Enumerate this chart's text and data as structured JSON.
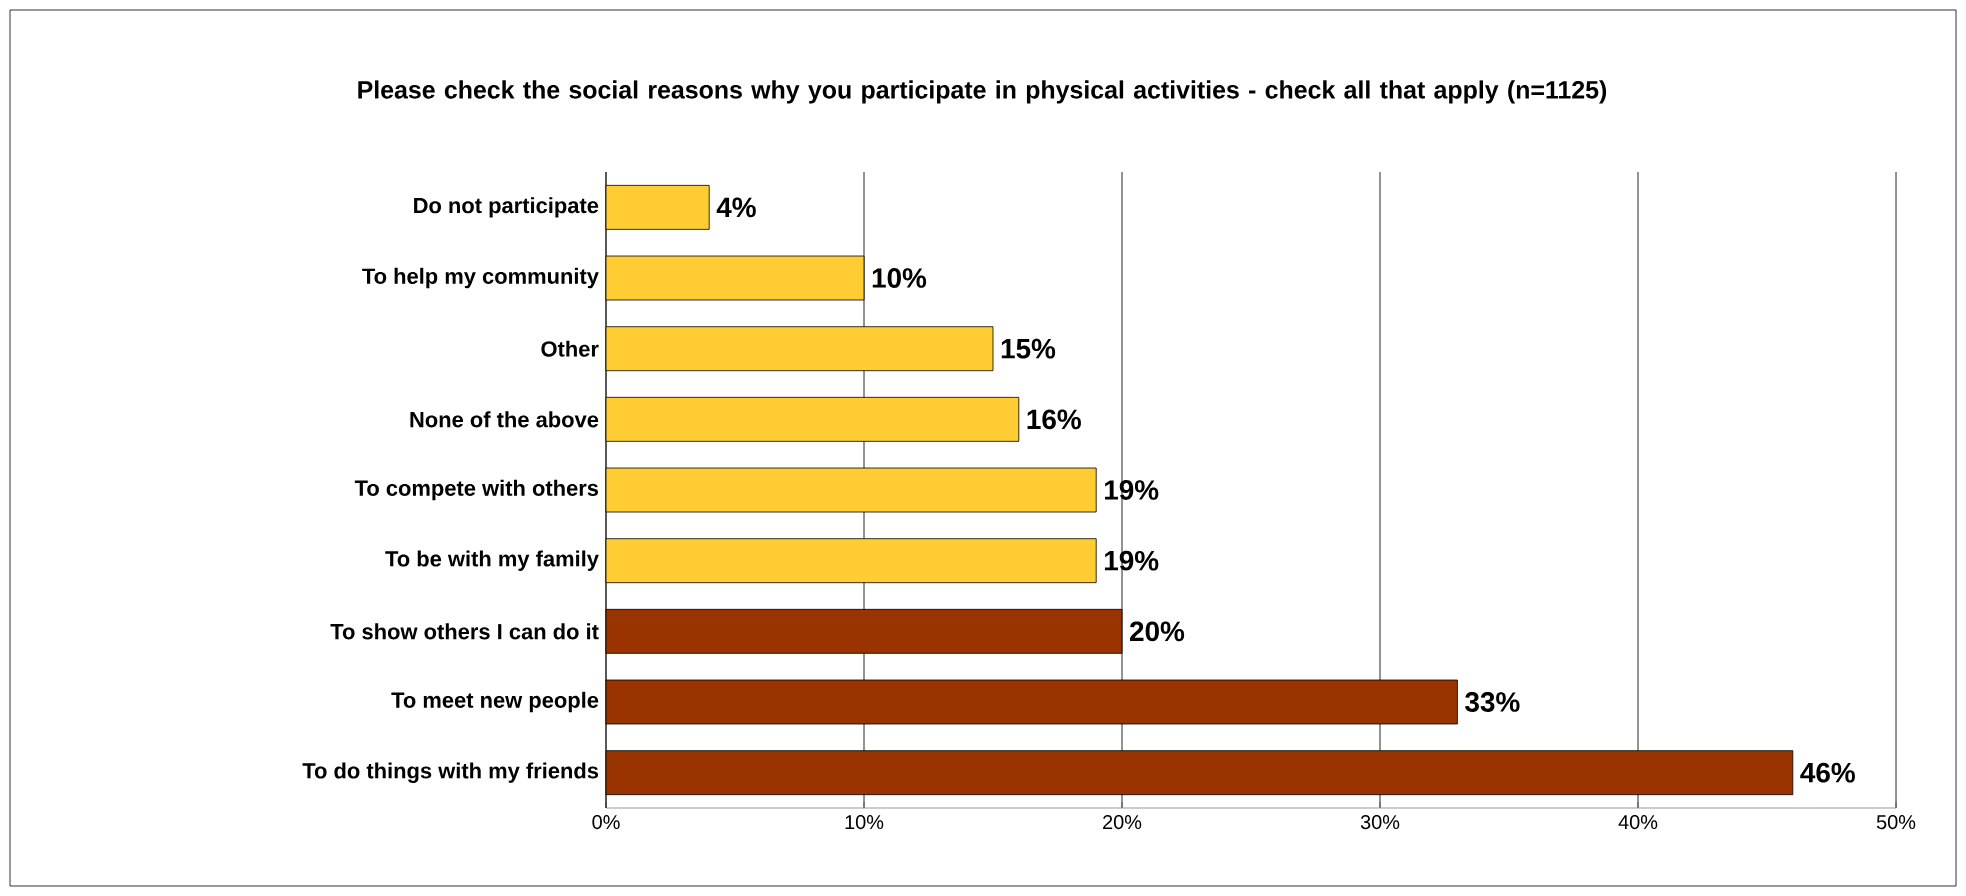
{
  "chart_data": {
    "type": "bar",
    "orientation": "horizontal",
    "title": "Please check the social reasons why you participate in physical activities - check all that apply (n=1125)",
    "categories": [
      "Do not participate",
      "To help my community",
      "Other",
      "None of the above",
      "To compete with others",
      "To be with my family",
      "To show others I can do it",
      "To meet new people",
      "To do things with my friends"
    ],
    "values": [
      4,
      10,
      15,
      16,
      19,
      19,
      20,
      33,
      46
    ],
    "value_labels": [
      "4%",
      "10%",
      "15%",
      "16%",
      "19%",
      "19%",
      "20%",
      "33%",
      "46%"
    ],
    "colors": [
      "#ffcc33",
      "#ffcc33",
      "#ffcc33",
      "#ffcc33",
      "#ffcc33",
      "#ffcc33",
      "#993300",
      "#993300",
      "#993300"
    ],
    "xlim": [
      0,
      50
    ],
    "xticks": [
      {
        "value": 0,
        "label": "0%"
      },
      {
        "value": 10,
        "label": "10%"
      },
      {
        "value": 20,
        "label": "20%"
      },
      {
        "value": 30,
        "label": "30%"
      },
      {
        "value": 40,
        "label": "40%"
      },
      {
        "value": 50,
        "label": "50%"
      }
    ],
    "grid": "x"
  }
}
